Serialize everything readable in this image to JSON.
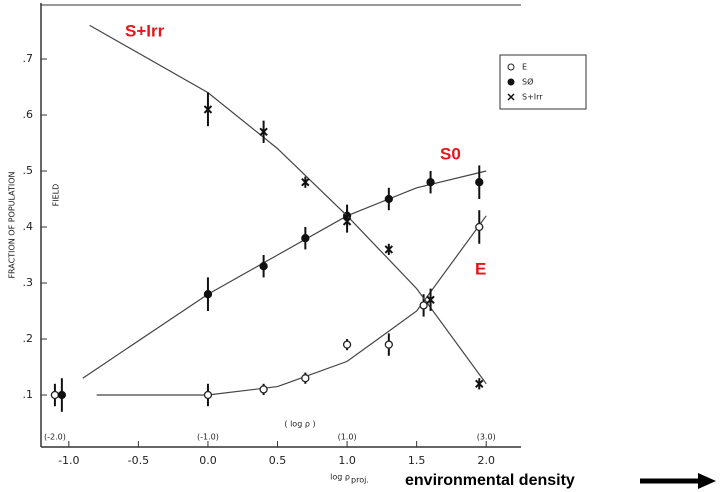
{
  "chart_data": {
    "type": "scatter",
    "y_label": "FRACTION OF POPULATION",
    "field_label": "FIELD",
    "x_label": "log ρ",
    "x_label_sub": "proj.",
    "x2_label": "( log ρ )",
    "footer": "environmental density",
    "xlim": [
      -1.2,
      2.25
    ],
    "ylim": [
      0.0,
      0.8
    ],
    "xticks": [
      {
        "value": -1.0,
        "label": "-1.0"
      },
      {
        "value": -0.5,
        "label": "-0.5"
      },
      {
        "value": 0.0,
        "label": "0.0"
      },
      {
        "value": 0.5,
        "label": "0.5"
      },
      {
        "value": 1.0,
        "label": "1.0"
      },
      {
        "value": 1.5,
        "label": "1.5"
      },
      {
        "value": 2.0,
        "label": "2.0"
      }
    ],
    "x2ticks": [
      {
        "value": -1.1,
        "label": "(-2.0)"
      },
      {
        "value": 0.0,
        "label": "(-1.0)"
      },
      {
        "value": 1.0,
        "label": "(1.0)"
      },
      {
        "value": 2.0,
        "label": "(3.0)"
      }
    ],
    "yticks": [
      {
        "value": 0.1,
        "label": ".1"
      },
      {
        "value": 0.2,
        "label": ".2"
      },
      {
        "value": 0.3,
        "label": ".3"
      },
      {
        "value": 0.4,
        "label": ".4"
      },
      {
        "value": 0.5,
        "label": ".5"
      },
      {
        "value": 0.6,
        "label": ".6"
      },
      {
        "value": 0.7,
        "label": ".7"
      }
    ],
    "legend": "upper right",
    "series": [
      {
        "name": "E",
        "marker": "open",
        "color": "#222",
        "x": [
          -1.1,
          0.0,
          0.4,
          0.7,
          1.0,
          1.3,
          1.55,
          1.95
        ],
        "values": [
          0.1,
          0.1,
          0.11,
          0.13,
          0.19,
          0.19,
          0.26,
          0.4
        ],
        "errors": [
          0.02,
          0.02,
          0.01,
          0.01,
          0.01,
          0.02,
          0.02,
          0.03
        ],
        "fit_x": [
          -0.8,
          0.0,
          0.5,
          1.0,
          1.5,
          2.0
        ],
        "fit_y": [
          0.1,
          0.1,
          0.115,
          0.16,
          0.25,
          0.42
        ]
      },
      {
        "name": "SØ",
        "marker": "filled",
        "color": "#111",
        "x": [
          -1.05,
          0.0,
          0.4,
          0.7,
          1.0,
          1.3,
          1.6,
          1.95
        ],
        "values": [
          0.1,
          0.28,
          0.33,
          0.38,
          0.42,
          0.45,
          0.48,
          0.48
        ],
        "errors": [
          0.03,
          0.03,
          0.02,
          0.02,
          0.02,
          0.02,
          0.02,
          0.03
        ],
        "fit_x": [
          -0.9,
          0.0,
          0.5,
          1.0,
          1.5,
          2.0
        ],
        "fit_y": [
          0.13,
          0.28,
          0.35,
          0.42,
          0.47,
          0.5
        ]
      },
      {
        "name": "S+Irr",
        "marker": "cross",
        "color": "#111",
        "x": [
          0.0,
          0.4,
          0.7,
          1.0,
          1.3,
          1.6,
          1.95
        ],
        "values": [
          0.61,
          0.57,
          0.48,
          0.41,
          0.36,
          0.27,
          0.12
        ],
        "errors": [
          0.03,
          0.02,
          0.01,
          0.02,
          0.01,
          0.02,
          0.01
        ],
        "fit_x": [
          -0.85,
          0.0,
          0.5,
          1.0,
          1.5,
          2.0
        ],
        "fit_y": [
          0.76,
          0.64,
          0.54,
          0.42,
          0.29,
          0.12
        ]
      }
    ],
    "annotations": [
      "S+Irr",
      "S0",
      "E"
    ]
  }
}
